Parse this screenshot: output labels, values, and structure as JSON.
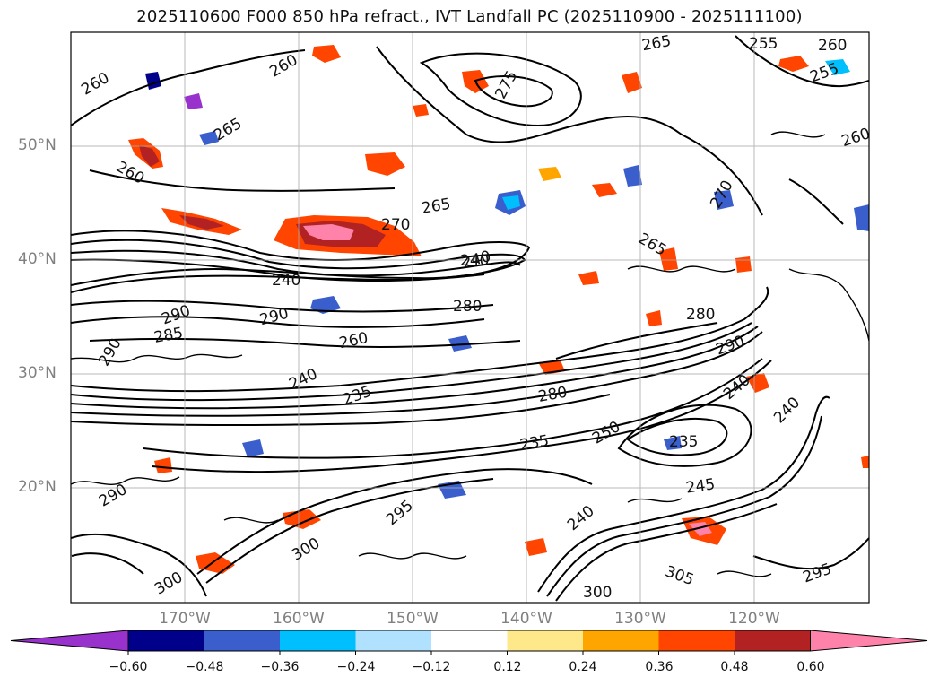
{
  "title": "2025110600 F000 850 hPa refract., IVT Landfall PC (2025110900 - 2025111100)",
  "map": {
    "lat_labels": [
      "50°N",
      "40°N",
      "30°N",
      "20°N"
    ],
    "lon_labels": [
      "170°W",
      "160°W",
      "150°W",
      "140°W",
      "130°W",
      "120°W"
    ],
    "contour_labels": [
      "260",
      "265",
      "255",
      "275",
      "270",
      "240",
      "280",
      "290",
      "285",
      "235",
      "300",
      "305",
      "295",
      "245",
      "250"
    ],
    "projection": "lat-lon",
    "lat_range": [
      10,
      60
    ],
    "lon_range": [
      -180,
      -110
    ]
  },
  "colorbar": {
    "ticks": [
      "−0.60",
      "−0.48",
      "−0.36",
      "−0.24",
      "−0.12",
      "0.12",
      "0.24",
      "0.36",
      "0.48",
      "0.60"
    ],
    "colors": [
      "#9932cc",
      "#00008b",
      "#3a5fcd",
      "#00bfff",
      "#b0e2ff",
      "#ffffff",
      "#ffe88a",
      "#ffa500",
      "#ff4500",
      "#b22222",
      "#ff82ab"
    ],
    "extend": "both"
  }
}
